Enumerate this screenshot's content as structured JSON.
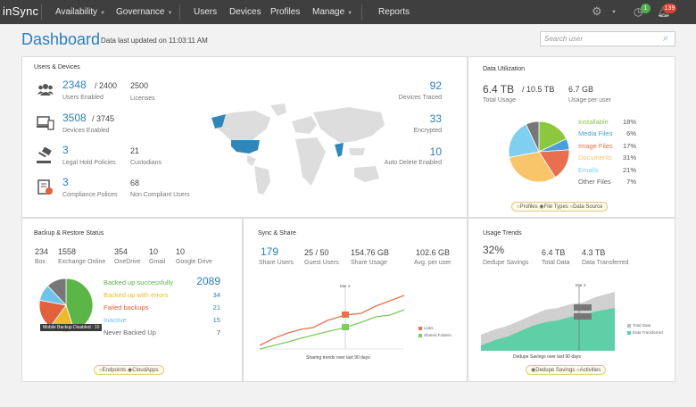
{
  "nav": {
    "logo": "inSync",
    "items": [
      "Availability",
      "Governance",
      "Users",
      "Devices",
      "Profiles",
      "Manage",
      "Reports"
    ],
    "badge_green": "1",
    "badge_red": "139"
  },
  "header": {
    "title": "Dashboard",
    "updated": "Data last updated on 11:03:11 AM",
    "search_placeholder": "Search user"
  },
  "users_devices": {
    "title": "Users & Devices",
    "users_enabled": "2348",
    "users_total": "/ 2400",
    "users_enabled_label": "Users Enabled",
    "licenses": "2500",
    "licenses_label": "Licenses",
    "devices_enabled": "3508",
    "devices_total": "/ 3745",
    "devices_enabled_label": "Devices Enabled",
    "legal_hold": "3",
    "legal_hold_label": "Legal Hold Policies",
    "custodians": "21",
    "custodians_label": "Custodians",
    "compliance": "3",
    "compliance_label": "Compliance Polices",
    "non_compliant": "68",
    "non_compliant_label": "Non Compliant Users",
    "devices_traced": "92",
    "devices_traced_label": "Devices Traced",
    "encrypted": "33",
    "encrypted_label": "Encrypted",
    "auto_delete": "10",
    "auto_delete_label": "Auto Delete Enabled"
  },
  "data_util": {
    "title": "Data Utilization",
    "total": "6.4 TB",
    "total_of": "/ 10.5 TB",
    "total_label": "Total Usage",
    "per_user": "6.7 GB",
    "per_user_label": "Usage per user",
    "legend": [
      {
        "name": "Installable",
        "pct": "18%",
        "color": "#8dc63f"
      },
      {
        "name": "Media Files",
        "pct": "6%",
        "color": "#4a9fd8"
      },
      {
        "name": "Image Files",
        "pct": "17%",
        "color": "#e8704f"
      },
      {
        "name": "Documents",
        "pct": "31%",
        "color": "#f9c56b"
      },
      {
        "name": "Emails",
        "pct": "21%",
        "color": "#7fcff0"
      },
      {
        "name": "Other Files",
        "pct": "7%",
        "color": "#777777"
      }
    ],
    "tabs": [
      "Profiles",
      "File Types",
      "Data Source"
    ]
  },
  "backup": {
    "title": "Backup & Restore Status",
    "stats": [
      {
        "v": "234",
        "l": "Box"
      },
      {
        "v": "1558",
        "l": "Exchange Online"
      },
      {
        "v": "354",
        "l": "OneDrive"
      },
      {
        "v": "10",
        "l": "Gmail"
      },
      {
        "v": "10",
        "l": "Google Drive"
      }
    ],
    "legend": [
      {
        "name": "Backed up successfully",
        "v": "2089",
        "color": "#5bb547"
      },
      {
        "name": "Backed up with errors",
        "v": "34",
        "color": "#f0b92b"
      },
      {
        "name": "Failed backups",
        "v": "21",
        "color": "#e0613c"
      },
      {
        "name": "Inactive",
        "v": "15",
        "color": "#6ec3ea"
      },
      {
        "name": "Never Backed Up",
        "v": "7",
        "color": "#777777"
      }
    ],
    "tooltip": "Mobile Backup Disabled : 10",
    "tabs": [
      "Endpoints",
      "CloudApps"
    ]
  },
  "sync": {
    "title": "Sync & Share",
    "share_users": "179",
    "share_users_label": "Share Users",
    "guest": "25 / 50",
    "guest_label": "Guest Users",
    "share_usage": "154.76 GB",
    "share_usage_label": "Share Usage",
    "avg": "102.6 GB",
    "avg_label": "Avg. per user",
    "marker": "Mar 2",
    "legend": [
      "Links",
      "Shared Folders"
    ],
    "caption": "Sharing trends over last 90 days"
  },
  "trends": {
    "title": "Usage Trends",
    "dedupe": "32%",
    "dedupe_label": "Dedupe Savings",
    "total": "6.4 TB",
    "total_label": "Total Data",
    "transferred": "4.3 TB",
    "transferred_label": "Data Transferred",
    "marker": "Mar 2",
    "legend": [
      "Total Data",
      "Data Transferred"
    ],
    "caption": "Dedupe Savings over last 90 days",
    "tabs": [
      "Dedupe Savings",
      "Activities"
    ]
  }
}
